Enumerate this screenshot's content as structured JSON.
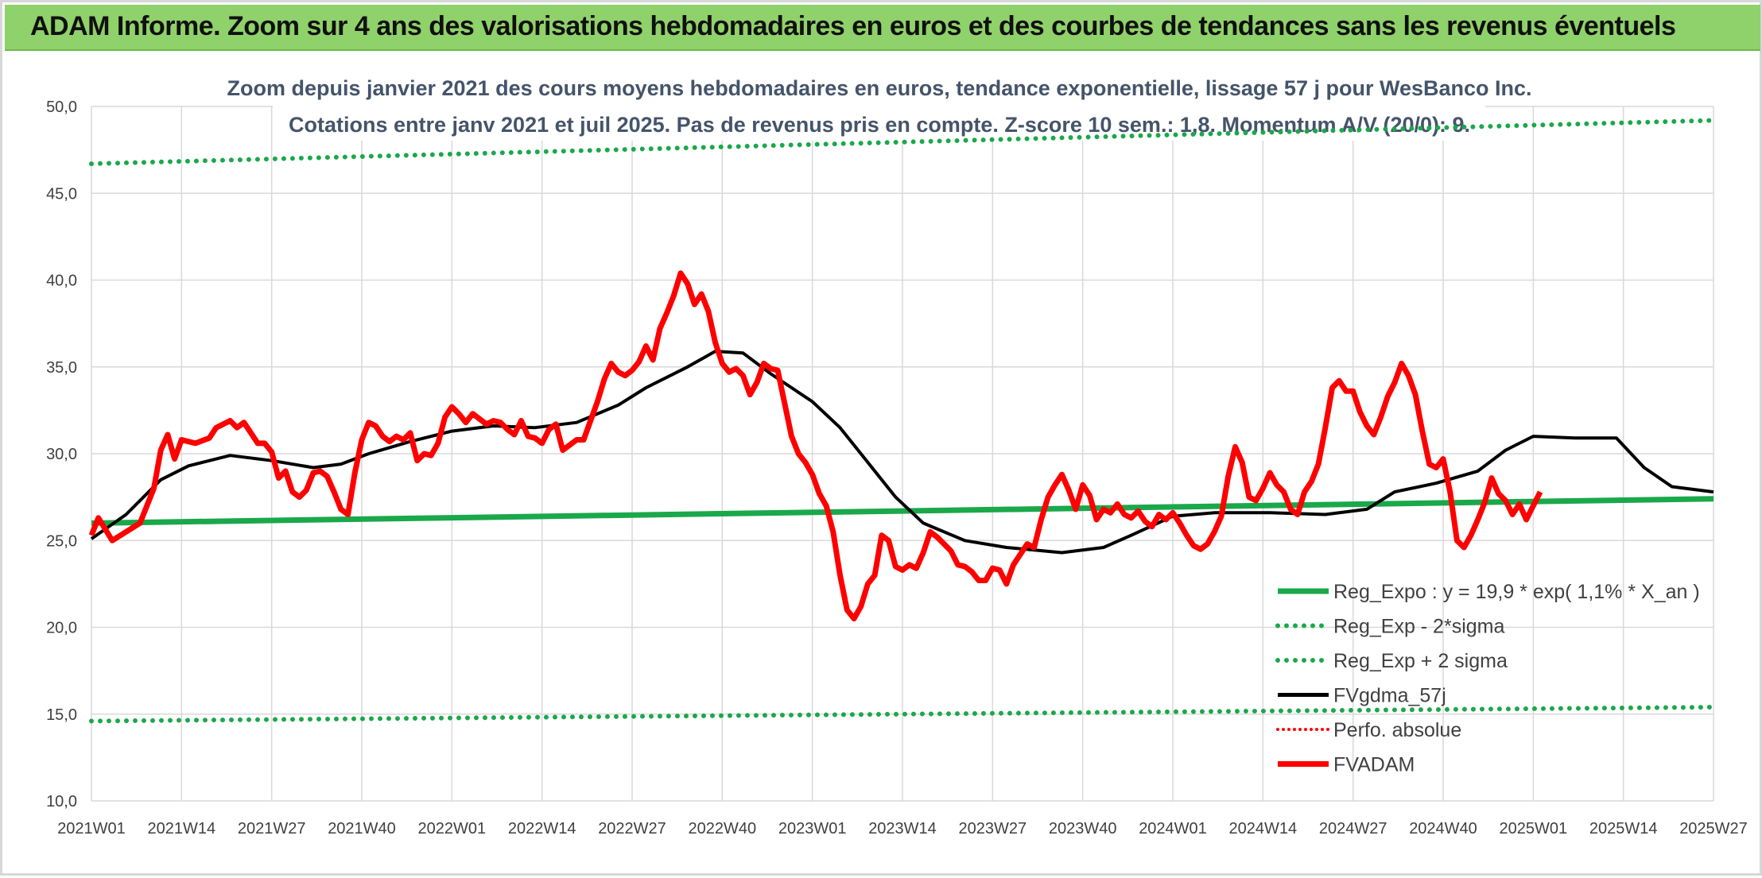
{
  "banner": {
    "title": "ADAM Informe. Zoom sur 4 ans des valorisations hebdomadaires en euros et des courbes de tendances sans les revenus éventuels"
  },
  "chart_data": {
    "type": "line",
    "title": "Zoom depuis janvier 2021 des cours moyens hebdomadaires en euros, tendance exponentielle, lissage 57 j pour WesBanco Inc.",
    "subtitle": "Cotations entre janv 2021 et juil 2025. Pas de revenus pris en compte. Z-score 10 sem.: 1,8. Momentum A/V (20/0): 9.",
    "ylim": [
      10,
      50
    ],
    "y_ticks": [
      "10,0",
      "15,0",
      "20,0",
      "25,0",
      "30,0",
      "35,0",
      "40,0",
      "45,0",
      "50,0"
    ],
    "x_categories": [
      "2021W01",
      "2021W14",
      "2021W27",
      "2021W40",
      "2022W01",
      "2022W14",
      "2022W27",
      "2022W40",
      "2023W01",
      "2023W14",
      "2023W27",
      "2023W40",
      "2024W01",
      "2024W14",
      "2024W27",
      "2024W40",
      "2025W01",
      "2025W14",
      "2025W27"
    ],
    "grid": true,
    "legend_position": "bottom-right",
    "colors": {
      "reg": "#1aa84b",
      "fv": "#000000",
      "adam": "#ff0000",
      "perfo": "#ff0000"
    },
    "series": [
      {
        "name": "Reg_Expo : y = 19,9 * exp( 1,1% *  X_an )",
        "style": "solid-green",
        "points": [
          [
            0,
            26.0
          ],
          [
            234,
            27.4
          ]
        ]
      },
      {
        "name": "Reg_Exp - 2*sigma",
        "style": "dotted-green",
        "points": [
          [
            0,
            14.6
          ],
          [
            234,
            15.4
          ]
        ]
      },
      {
        "name": "Reg_Exp + 2 sigma",
        "style": "dotted-green",
        "points": [
          [
            0,
            46.7
          ],
          [
            234,
            49.2
          ]
        ]
      },
      {
        "name": "FVgdma_57j",
        "style": "solid-black",
        "points": [
          [
            0,
            25.1
          ],
          [
            5,
            26.5
          ],
          [
            10,
            28.5
          ],
          [
            14,
            29.3
          ],
          [
            20,
            29.9
          ],
          [
            26,
            29.6
          ],
          [
            32,
            29.2
          ],
          [
            36,
            29.4
          ],
          [
            40,
            30.0
          ],
          [
            46,
            30.7
          ],
          [
            52,
            31.3
          ],
          [
            58,
            31.6
          ],
          [
            64,
            31.5
          ],
          [
            70,
            31.8
          ],
          [
            76,
            32.8
          ],
          [
            80,
            33.8
          ],
          [
            86,
            35.0
          ],
          [
            90,
            35.9
          ],
          [
            94,
            35.8
          ],
          [
            98,
            34.6
          ],
          [
            104,
            33.0
          ],
          [
            108,
            31.5
          ],
          [
            112,
            29.5
          ],
          [
            116,
            27.5
          ],
          [
            120,
            26.0
          ],
          [
            126,
            25.0
          ],
          [
            132,
            24.6
          ],
          [
            140,
            24.3
          ],
          [
            146,
            24.6
          ],
          [
            150,
            25.3
          ],
          [
            156,
            26.4
          ],
          [
            162,
            26.6
          ],
          [
            170,
            26.6
          ],
          [
            178,
            26.5
          ],
          [
            184,
            26.8
          ],
          [
            188,
            27.8
          ],
          [
            194,
            28.3
          ],
          [
            200,
            29.0
          ],
          [
            204,
            30.2
          ],
          [
            208,
            31.0
          ],
          [
            214,
            30.9
          ],
          [
            220,
            30.9
          ],
          [
            224,
            29.2
          ],
          [
            228,
            28.1
          ],
          [
            234,
            27.8
          ]
        ]
      },
      {
        "name": "Perfo. absolue",
        "style": "dotted-red",
        "points": []
      },
      {
        "name": "FVADAM",
        "style": "thick-red",
        "points": [
          [
            0,
            25.3
          ],
          [
            1,
            26.3
          ],
          [
            3,
            25.0
          ],
          [
            5,
            25.5
          ],
          [
            7,
            26.0
          ],
          [
            9,
            28.0
          ],
          [
            10,
            30.2
          ],
          [
            11,
            31.1
          ],
          [
            12,
            29.7
          ],
          [
            13,
            30.8
          ],
          [
            15,
            30.6
          ],
          [
            17,
            30.9
          ],
          [
            18,
            31.5
          ],
          [
            20,
            31.9
          ],
          [
            21,
            31.5
          ],
          [
            22,
            31.8
          ],
          [
            24,
            30.6
          ],
          [
            25,
            30.6
          ],
          [
            26,
            30.1
          ],
          [
            27,
            28.6
          ],
          [
            28,
            29.0
          ],
          [
            29,
            27.8
          ],
          [
            30,
            27.5
          ],
          [
            31,
            27.9
          ],
          [
            32,
            28.9
          ],
          [
            33,
            29.0
          ],
          [
            34,
            28.7
          ],
          [
            35,
            27.8
          ],
          [
            36,
            26.8
          ],
          [
            37,
            26.5
          ],
          [
            38,
            28.9
          ],
          [
            39,
            30.8
          ],
          [
            40,
            31.8
          ],
          [
            41,
            31.6
          ],
          [
            42,
            31.0
          ],
          [
            43,
            30.7
          ],
          [
            44,
            31.0
          ],
          [
            45,
            30.8
          ],
          [
            46,
            31.2
          ],
          [
            47,
            29.6
          ],
          [
            48,
            30.0
          ],
          [
            49,
            29.9
          ],
          [
            50,
            30.6
          ],
          [
            51,
            32.1
          ],
          [
            52,
            32.7
          ],
          [
            53,
            32.3
          ],
          [
            54,
            31.8
          ],
          [
            55,
            32.3
          ],
          [
            56,
            32.0
          ],
          [
            57,
            31.7
          ],
          [
            58,
            31.9
          ],
          [
            59,
            31.8
          ],
          [
            60,
            31.4
          ],
          [
            61,
            31.1
          ],
          [
            62,
            31.9
          ],
          [
            63,
            31.0
          ],
          [
            64,
            30.9
          ],
          [
            65,
            30.6
          ],
          [
            66,
            31.4
          ],
          [
            67,
            31.7
          ],
          [
            68,
            30.2
          ],
          [
            69,
            30.5
          ],
          [
            70,
            30.8
          ],
          [
            71,
            30.8
          ],
          [
            72,
            31.9
          ],
          [
            73,
            33.0
          ],
          [
            74,
            34.3
          ],
          [
            75,
            35.2
          ],
          [
            76,
            34.7
          ],
          [
            77,
            34.5
          ],
          [
            78,
            34.8
          ],
          [
            79,
            35.3
          ],
          [
            80,
            36.2
          ],
          [
            81,
            35.4
          ],
          [
            82,
            37.2
          ],
          [
            83,
            38.1
          ],
          [
            84,
            39.1
          ],
          [
            85,
            40.4
          ],
          [
            86,
            39.8
          ],
          [
            87,
            38.6
          ],
          [
            88,
            39.2
          ],
          [
            89,
            38.2
          ],
          [
            90,
            36.4
          ],
          [
            91,
            35.2
          ],
          [
            92,
            34.7
          ],
          [
            93,
            34.9
          ],
          [
            94,
            34.5
          ],
          [
            95,
            33.4
          ],
          [
            96,
            34.1
          ],
          [
            97,
            35.2
          ],
          [
            98,
            34.9
          ],
          [
            99,
            34.8
          ],
          [
            100,
            32.9
          ],
          [
            101,
            31.0
          ],
          [
            102,
            30.0
          ],
          [
            103,
            29.5
          ],
          [
            104,
            28.8
          ],
          [
            105,
            27.7
          ],
          [
            106,
            27.0
          ],
          [
            107,
            25.5
          ],
          [
            108,
            23.0
          ],
          [
            109,
            21.0
          ],
          [
            110,
            20.5
          ],
          [
            111,
            21.2
          ],
          [
            112,
            22.5
          ],
          [
            113,
            23.0
          ],
          [
            114,
            25.3
          ],
          [
            115,
            25.0
          ],
          [
            116,
            23.5
          ],
          [
            117,
            23.3
          ],
          [
            118,
            23.6
          ],
          [
            119,
            23.4
          ],
          [
            120,
            24.3
          ],
          [
            121,
            25.5
          ],
          [
            122,
            25.2
          ],
          [
            123,
            24.8
          ],
          [
            124,
            24.4
          ],
          [
            125,
            23.6
          ],
          [
            126,
            23.5
          ],
          [
            127,
            23.2
          ],
          [
            128,
            22.7
          ],
          [
            129,
            22.7
          ],
          [
            130,
            23.4
          ],
          [
            131,
            23.3
          ],
          [
            132,
            22.5
          ],
          [
            133,
            23.6
          ],
          [
            134,
            24.2
          ],
          [
            135,
            24.8
          ],
          [
            136,
            24.6
          ],
          [
            137,
            26.2
          ],
          [
            138,
            27.5
          ],
          [
            139,
            28.2
          ],
          [
            140,
            28.8
          ],
          [
            141,
            27.9
          ],
          [
            142,
            26.8
          ],
          [
            143,
            28.2
          ],
          [
            144,
            27.6
          ],
          [
            145,
            26.2
          ],
          [
            146,
            26.8
          ],
          [
            147,
            26.6
          ],
          [
            148,
            27.1
          ],
          [
            149,
            26.5
          ],
          [
            150,
            26.3
          ],
          [
            151,
            26.7
          ],
          [
            152,
            26.1
          ],
          [
            153,
            25.8
          ],
          [
            154,
            26.5
          ],
          [
            155,
            26.2
          ],
          [
            156,
            26.6
          ],
          [
            157,
            26.0
          ],
          [
            158,
            25.3
          ],
          [
            159,
            24.7
          ],
          [
            160,
            24.5
          ],
          [
            161,
            24.8
          ],
          [
            162,
            25.5
          ],
          [
            163,
            26.4
          ],
          [
            164,
            28.7
          ],
          [
            165,
            30.4
          ],
          [
            166,
            29.5
          ],
          [
            167,
            27.5
          ],
          [
            168,
            27.3
          ],
          [
            169,
            28.0
          ],
          [
            170,
            28.9
          ],
          [
            171,
            28.2
          ],
          [
            172,
            27.8
          ],
          [
            173,
            26.8
          ],
          [
            174,
            26.5
          ],
          [
            175,
            27.8
          ],
          [
            176,
            28.4
          ],
          [
            177,
            29.4
          ],
          [
            178,
            31.5
          ],
          [
            179,
            33.8
          ],
          [
            180,
            34.2
          ],
          [
            181,
            33.6
          ],
          [
            182,
            33.6
          ],
          [
            183,
            32.4
          ],
          [
            184,
            31.6
          ],
          [
            185,
            31.1
          ],
          [
            186,
            32.1
          ],
          [
            187,
            33.3
          ],
          [
            188,
            34.1
          ],
          [
            189,
            35.2
          ],
          [
            190,
            34.5
          ],
          [
            191,
            33.4
          ],
          [
            192,
            31.3
          ],
          [
            193,
            29.4
          ],
          [
            194,
            29.2
          ],
          [
            195,
            29.7
          ],
          [
            196,
            27.8
          ],
          [
            197,
            25.0
          ],
          [
            198,
            24.6
          ],
          [
            199,
            25.3
          ],
          [
            200,
            26.2
          ],
          [
            201,
            27.2
          ],
          [
            202,
            28.6
          ],
          [
            203,
            27.7
          ],
          [
            204,
            27.3
          ],
          [
            205,
            26.5
          ],
          [
            206,
            27.1
          ],
          [
            207,
            26.2
          ],
          [
            208,
            27.0
          ],
          [
            209,
            27.8
          ]
        ]
      }
    ]
  }
}
